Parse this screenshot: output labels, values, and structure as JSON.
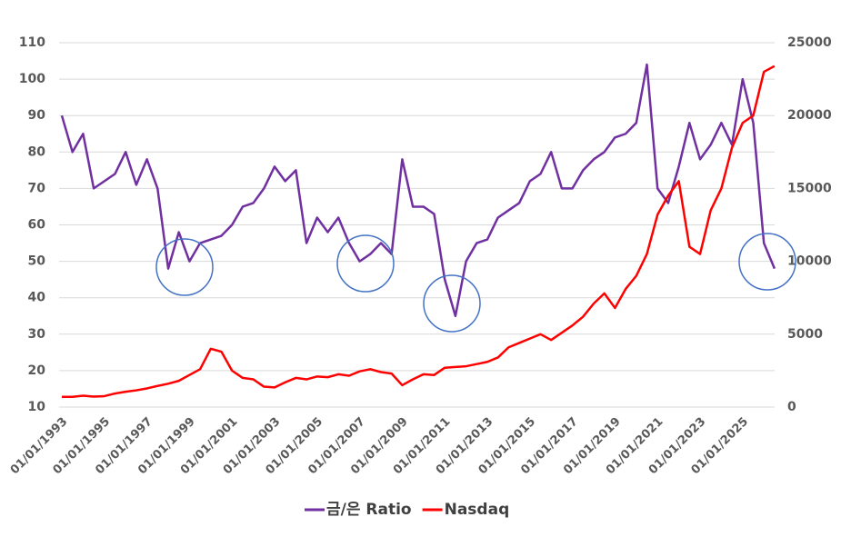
{
  "chart_data": {
    "type": "line",
    "categories": [
      "01/01/1993",
      null,
      null,
      null,
      "01/01/1995",
      null,
      null,
      null,
      "01/01/1997",
      null,
      null,
      null,
      "01/01/1999",
      null,
      null,
      null,
      "01/01/2001",
      null,
      null,
      null,
      "01/01/2003",
      null,
      null,
      null,
      "01/01/2005",
      null,
      null,
      null,
      "01/01/2007",
      null,
      null,
      null,
      "01/01/2009",
      null,
      null,
      null,
      "01/01/2011",
      null,
      null,
      null,
      "01/01/2013",
      null,
      null,
      null,
      "01/01/2015",
      null,
      null,
      null,
      "01/01/2017",
      null,
      null,
      null,
      "01/01/2019",
      null,
      null,
      null,
      "01/01/2021",
      null,
      null,
      null,
      "01/01/2023",
      null,
      null,
      null,
      "01/01/2025",
      null,
      null,
      null
    ],
    "series": [
      {
        "name": "금/은 Ratio",
        "color": "#7030a0",
        "axis": "y",
        "values": [
          90,
          80,
          85,
          70,
          72,
          74,
          80,
          71,
          78,
          70,
          48,
          58,
          50,
          55,
          56,
          57,
          60,
          65,
          66,
          70,
          76,
          72,
          75,
          55,
          62,
          58,
          62,
          55,
          50,
          52,
          55,
          52,
          78,
          65,
          65,
          63,
          45,
          35,
          50,
          55,
          56,
          62,
          64,
          66,
          72,
          74,
          80,
          70,
          70,
          75,
          78,
          80,
          84,
          85,
          88,
          104,
          70,
          66,
          76,
          88,
          78,
          82,
          88,
          82,
          100,
          88,
          55,
          48
        ]
      },
      {
        "name": "Nasdaq",
        "color": "#ff0000",
        "axis": "y2",
        "values": [
          700,
          700,
          780,
          720,
          750,
          930,
          1050,
          1150,
          1280,
          1450,
          1600,
          1800,
          2200,
          2600,
          4000,
          3800,
          2500,
          2000,
          1900,
          1400,
          1350,
          1700,
          2000,
          1900,
          2100,
          2050,
          2250,
          2150,
          2450,
          2600,
          2400,
          2300,
          1500,
          1900,
          2250,
          2200,
          2700,
          2750,
          2800,
          2950,
          3100,
          3400,
          4100,
          4400,
          4700,
          5000,
          4600,
          5100,
          5600,
          6200,
          7100,
          7800,
          6800,
          8100,
          9000,
          10500,
          13200,
          14500,
          15500,
          11000,
          10500,
          13500,
          15000,
          17800,
          19500,
          20000,
          23000,
          23400
        ]
      }
    ],
    "ylim": [
      10,
      110
    ],
    "yticks": [
      10,
      20,
      30,
      40,
      50,
      60,
      70,
      80,
      90,
      100,
      110
    ],
    "y2lim": [
      0,
      25000
    ],
    "y2ticks": [
      0,
      5000,
      10000,
      15000,
      20000,
      25000
    ],
    "grid": true,
    "legend": "bottom"
  }
}
